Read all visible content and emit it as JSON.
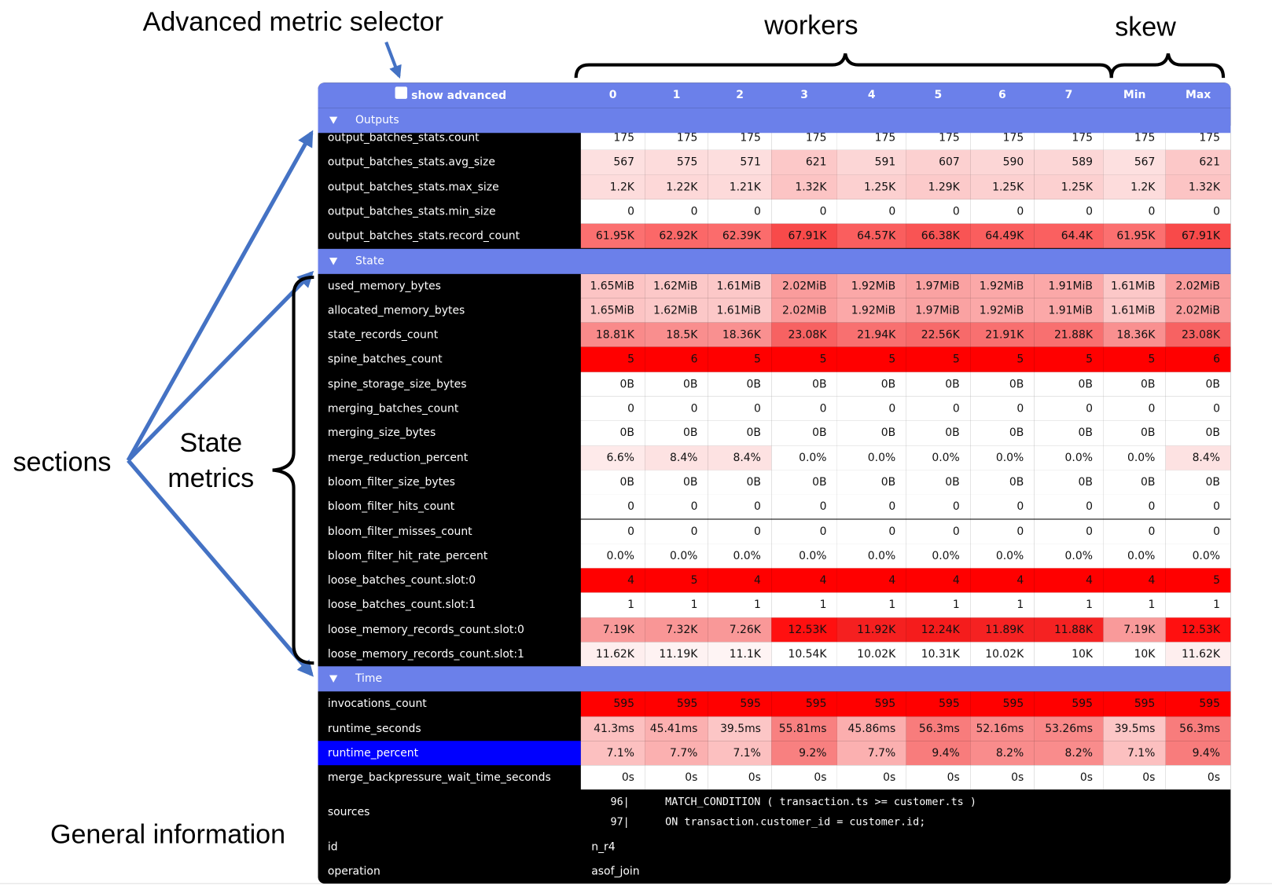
{
  "annotations": {
    "selector": "Advanced metric selector",
    "workers": "workers",
    "skew": "skew",
    "sections": "sections",
    "state_metrics": "State metrics",
    "general": "General information"
  },
  "header": {
    "checkbox_label": "show advanced",
    "columns": [
      "0",
      "1",
      "2",
      "3",
      "4",
      "5",
      "6",
      "7",
      "Min",
      "Max"
    ]
  },
  "sections": [
    {
      "title": "Outputs",
      "rows": [
        {
          "name": "output_batches_stats.count",
          "values": [
            "175",
            "175",
            "175",
            "175",
            "175",
            "175",
            "175",
            "175",
            "175",
            "175"
          ]
        },
        {
          "name": "output_batches_stats.avg_size",
          "values": [
            "567",
            "575",
            "571",
            "621",
            "591",
            "607",
            "590",
            "589",
            "567",
            "621"
          ],
          "colors": [
            "#fde0e0",
            "#fddcdc",
            "#fddede",
            "#fcc8c8",
            "#fcd6d6",
            "#fcd0d0",
            "#fcd6d6",
            "#fcd6d6",
            "#fde0e0",
            "#fcc8c8"
          ]
        },
        {
          "name": "output_batches_stats.max_size",
          "values": [
            "1.2K",
            "1.22K",
            "1.21K",
            "1.32K",
            "1.25K",
            "1.29K",
            "1.25K",
            "1.25K",
            "1.2K",
            "1.32K"
          ],
          "colors": [
            "#fddcdc",
            "#fdd8d8",
            "#fddada",
            "#fcc4c4",
            "#fcd0d0",
            "#fccaca",
            "#fcd0d0",
            "#fcd0d0",
            "#fddcdc",
            "#fcc4c4"
          ]
        },
        {
          "name": "output_batches_stats.min_size",
          "values": [
            "0",
            "0",
            "0",
            "0",
            "0",
            "0",
            "0",
            "0",
            "0",
            "0"
          ]
        },
        {
          "name": "output_batches_stats.record_count",
          "values": [
            "61.95K",
            "62.92K",
            "62.39K",
            "67.91K",
            "64.57K",
            "66.38K",
            "64.49K",
            "64.4K",
            "61.95K",
            "67.91K"
          ],
          "colors": [
            "#fb7070",
            "#fb6868",
            "#fb6c6c",
            "#f84a4a",
            "#fa5e5e",
            "#f95454",
            "#fa5e5e",
            "#fa6060",
            "#fb7070",
            "#f84a4a"
          ]
        }
      ]
    },
    {
      "title": "State",
      "rows": [
        {
          "name": "used_memory_bytes",
          "values": [
            "1.65MiB",
            "1.62MiB",
            "1.61MiB",
            "2.02MiB",
            "1.92MiB",
            "1.97MiB",
            "1.92MiB",
            "1.91MiB",
            "1.61MiB",
            "2.02MiB"
          ],
          "colors": [
            "#fcc4c4",
            "#fcc8c8",
            "#fcc8c8",
            "#fa9c9c",
            "#fba8a8",
            "#faa2a2",
            "#fba8a8",
            "#fba8a8",
            "#fcc8c8",
            "#fa9c9c"
          ]
        },
        {
          "name": "allocated_memory_bytes",
          "values": [
            "1.65MiB",
            "1.62MiB",
            "1.61MiB",
            "2.02MiB",
            "1.92MiB",
            "1.97MiB",
            "1.92MiB",
            "1.91MiB",
            "1.61MiB",
            "2.02MiB"
          ],
          "colors": [
            "#fcc4c4",
            "#fcc8c8",
            "#fcc8c8",
            "#fa9c9c",
            "#fba8a8",
            "#faa2a2",
            "#fba8a8",
            "#fba8a8",
            "#fcc8c8",
            "#fa9c9c"
          ]
        },
        {
          "name": "state_records_count",
          "values": [
            "18.81K",
            "18.5K",
            "18.36K",
            "23.08K",
            "21.94K",
            "22.56K",
            "21.91K",
            "21.88K",
            "18.36K",
            "23.08K"
          ],
          "colors": [
            "#f98a8a",
            "#f98e8e",
            "#f99090",
            "#f76262",
            "#f87070",
            "#f76a6a",
            "#f87070",
            "#f87070",
            "#f99090",
            "#f76262"
          ]
        },
        {
          "name": "spine_batches_count",
          "values": [
            "5",
            "6",
            "5",
            "5",
            "5",
            "5",
            "5",
            "5",
            "5",
            "6"
          ],
          "color": "#ff0000"
        },
        {
          "name": "spine_storage_size_bytes",
          "values": [
            "0B",
            "0B",
            "0B",
            "0B",
            "0B",
            "0B",
            "0B",
            "0B",
            "0B",
            "0B"
          ]
        },
        {
          "name": "merging_batches_count",
          "values": [
            "0",
            "0",
            "0",
            "0",
            "0",
            "0",
            "0",
            "0",
            "0",
            "0"
          ]
        },
        {
          "name": "merging_size_bytes",
          "values": [
            "0B",
            "0B",
            "0B",
            "0B",
            "0B",
            "0B",
            "0B",
            "0B",
            "0B",
            "0B"
          ]
        },
        {
          "name": "merge_reduction_percent",
          "values": [
            "6.6%",
            "8.4%",
            "8.4%",
            "0.0%",
            "0.0%",
            "0.0%",
            "0.0%",
            "0.0%",
            "0.0%",
            "8.4%"
          ],
          "colors": [
            "#feeaea",
            "#fde2e2",
            "#fde2e2",
            "#ffffff",
            "#ffffff",
            "#ffffff",
            "#ffffff",
            "#ffffff",
            "#ffffff",
            "#fde2e2"
          ]
        },
        {
          "name": "bloom_filter_size_bytes",
          "values": [
            "0B",
            "0B",
            "0B",
            "0B",
            "0B",
            "0B",
            "0B",
            "0B",
            "0B",
            "0B"
          ]
        },
        {
          "name": "bloom_filter_hits_count",
          "values": [
            "0",
            "0",
            "0",
            "0",
            "0",
            "0",
            "0",
            "0",
            "0",
            "0"
          ]
        },
        {
          "name": "bloom_filter_misses_count",
          "values": [
            "0",
            "0",
            "0",
            "0",
            "0",
            "0",
            "0",
            "0",
            "0",
            "0"
          ]
        },
        {
          "name": "bloom_filter_hit_rate_percent",
          "values": [
            "0.0%",
            "0.0%",
            "0.0%",
            "0.0%",
            "0.0%",
            "0.0%",
            "0.0%",
            "0.0%",
            "0.0%",
            "0.0%"
          ]
        },
        {
          "name": "loose_batches_count.slot:0",
          "values": [
            "4",
            "5",
            "4",
            "4",
            "4",
            "4",
            "4",
            "4",
            "4",
            "5"
          ],
          "color": "#ff0000"
        },
        {
          "name": "loose_batches_count.slot:1",
          "values": [
            "1",
            "1",
            "1",
            "1",
            "1",
            "1",
            "1",
            "1",
            "1",
            "1"
          ]
        },
        {
          "name": "loose_memory_records_count.slot:0",
          "values": [
            "7.19K",
            "7.32K",
            "7.26K",
            "12.53K",
            "11.92K",
            "12.24K",
            "11.89K",
            "11.88K",
            "7.19K",
            "12.53K"
          ],
          "colors": [
            "#f99a9a",
            "#f99696",
            "#f99898",
            "#ff1010",
            "#f52020",
            "#f51c1c",
            "#f52222",
            "#f52222",
            "#f99a9a",
            "#ff1010"
          ]
        },
        {
          "name": "loose_memory_records_count.slot:1",
          "values": [
            "11.62K",
            "11.19K",
            "11.1K",
            "10.54K",
            "10.02K",
            "10.31K",
            "10.02K",
            "10K",
            "10K",
            "11.62K"
          ],
          "colors": [
            "#feeeee",
            "#fef2f2",
            "#fef4f4",
            "#ffffff",
            "#ffffff",
            "#ffffff",
            "#ffffff",
            "#ffffff",
            "#ffffff",
            "#feeeee"
          ]
        }
      ]
    },
    {
      "title": "Time",
      "rows": [
        {
          "name": "invocations_count",
          "values": [
            "595",
            "595",
            "595",
            "595",
            "595",
            "595",
            "595",
            "595",
            "595",
            "595"
          ],
          "color": "#ff0000"
        },
        {
          "name": "runtime_seconds",
          "values": [
            "41.3ms",
            "45.41ms",
            "39.5ms",
            "55.81ms",
            "45.86ms",
            "56.3ms",
            "52.16ms",
            "53.26ms",
            "39.5ms",
            "56.3ms"
          ],
          "colors": [
            "#fcc0c0",
            "#fbb0b0",
            "#fcc6c6",
            "#f88080",
            "#fbaeae",
            "#f87c7c",
            "#f98c8c",
            "#f98888",
            "#fcc6c6",
            "#f87c7c"
          ]
        },
        {
          "name": "runtime_percent",
          "label_color": "#0000ff",
          "values": [
            "7.1%",
            "7.7%",
            "7.1%",
            "9.2%",
            "7.7%",
            "9.4%",
            "8.2%",
            "8.2%",
            "7.1%",
            "9.4%"
          ],
          "colors": [
            "#fcc0c0",
            "#fbb0b0",
            "#fcc0c0",
            "#f88080",
            "#fbb0b0",
            "#f87c7c",
            "#f98c8c",
            "#f98c8c",
            "#fcc0c0",
            "#f87c7c"
          ]
        },
        {
          "name": "merge_backpressure_wait_time_seconds",
          "values": [
            "0s",
            "0s",
            "0s",
            "0s",
            "0s",
            "0s",
            "0s",
            "0s",
            "0s",
            "0s"
          ]
        }
      ]
    }
  ],
  "general": {
    "sources": {
      "label": "sources",
      "lines": [
        {
          "number": "96|",
          "code": "MATCH_CONDITION ( transaction.ts >= customer.ts )"
        },
        {
          "number": "97|",
          "code": "ON transaction.customer_id = customer.id;"
        }
      ]
    },
    "id": {
      "label": "id",
      "value": "n_r4"
    },
    "operation": {
      "label": "operation",
      "value": "asof_join"
    }
  }
}
